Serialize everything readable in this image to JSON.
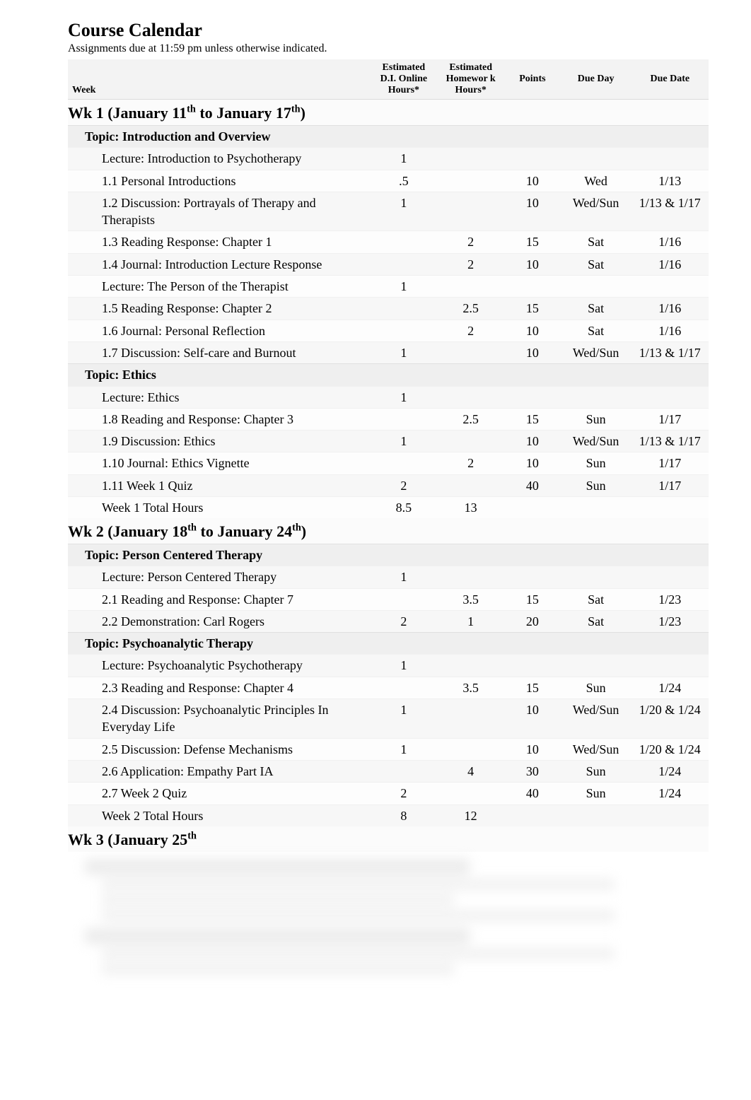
{
  "page": {
    "title": "Course Calendar",
    "subtitle": "Assignments due at 11:59 pm unless otherwise indicated."
  },
  "columns": {
    "week": "Week",
    "di": "Estimated D.I. Online Hours*",
    "hw": "Estimated Homewor k Hours*",
    "points": "Points",
    "dueday": "Due Day",
    "duedate": "Due Date"
  },
  "colors": {
    "header_bg": "#f3f3f3",
    "topic_bg": "#efefef",
    "row_alt_bg": "#f7f7f7",
    "row_bg": "#fdfdfd",
    "border": "#e0e0e0",
    "text": "#000000"
  },
  "weeks": [
    {
      "label_prefix": "Wk 1  (January 11",
      "label_sup1": "th",
      "label_mid": " to January 17",
      "label_sup2": "th",
      "label_suffix": ")",
      "sections": [
        {
          "topic": "Topic: Introduction and Overview",
          "items": [
            {
              "name": "Lecture: Introduction to Psychotherapy",
              "di": "1",
              "hw": "",
              "pts": "",
              "day": "",
              "date": ""
            },
            {
              "name": "1.1 Personal Introductions",
              "di": ".5",
              "hw": "",
              "pts": "10",
              "day": "Wed",
              "date": "1/13"
            },
            {
              "name": "1.2 Discussion: Portrayals of Therapy and Therapists",
              "di": "1",
              "hw": "",
              "pts": "10",
              "day": "Wed/Sun",
              "date": "1/13 & 1/17"
            },
            {
              "name": "1.3 Reading Response: Chapter 1",
              "di": "",
              "hw": "2",
              "pts": "15",
              "day": "Sat",
              "date": "1/16"
            },
            {
              "name": "1.4 Journal: Introduction Lecture Response",
              "di": "",
              "hw": "2",
              "pts": "10",
              "day": "Sat",
              "date": "1/16"
            },
            {
              "name": "Lecture: The Person of the Therapist",
              "di": "1",
              "hw": "",
              "pts": "",
              "day": "",
              "date": ""
            },
            {
              "name": "1.5 Reading Response: Chapter 2",
              "di": "",
              "hw": "2.5",
              "pts": "15",
              "day": "Sat",
              "date": "1/16"
            },
            {
              "name": "1.6 Journal: Personal Reflection",
              "di": "",
              "hw": "2",
              "pts": "10",
              "day": "Sat",
              "date": "1/16"
            },
            {
              "name": "1.7 Discussion: Self-care and Burnout",
              "di": "1",
              "hw": "",
              "pts": "10",
              "day": "Wed/Sun",
              "date": "1/13 & 1/17"
            }
          ]
        },
        {
          "topic": "Topic: Ethics",
          "items": [
            {
              "name": "Lecture: Ethics",
              "di": "1",
              "hw": "",
              "pts": "",
              "day": "",
              "date": ""
            },
            {
              "name": "1.8 Reading and Response: Chapter 3",
              "di": "",
              "hw": "2.5",
              "pts": "15",
              "day": "Sun",
              "date": "1/17"
            },
            {
              "name": "1.9 Discussion: Ethics",
              "di": "1",
              "hw": "",
              "pts": "10",
              "day": "Wed/Sun",
              "date": "1/13 & 1/17"
            },
            {
              "name": "1.10 Journal: Ethics Vignette",
              "di": "",
              "hw": "2",
              "pts": "10",
              "day": "Sun",
              "date": "1/17"
            },
            {
              "name": "1.11 Week 1 Quiz",
              "di": "2",
              "hw": "",
              "pts": "40",
              "day": "Sun",
              "date": "1/17"
            },
            {
              "name": "Week 1 Total Hours",
              "di": "8.5",
              "hw": "13",
              "pts": "",
              "day": "",
              "date": ""
            }
          ]
        }
      ]
    },
    {
      "label_prefix": "Wk 2  (January 18",
      "label_sup1": "th",
      "label_mid": " to January 24",
      "label_sup2": "th",
      "label_suffix": ")",
      "sections": [
        {
          "topic": "Topic: Person Centered Therapy",
          "items": [
            {
              "name": "Lecture: Person Centered Therapy",
              "di": "1",
              "hw": "",
              "pts": "",
              "day": "",
              "date": ""
            },
            {
              "name": "2.1 Reading and Response: Chapter 7",
              "di": "",
              "hw": "3.5",
              "pts": "15",
              "day": "Sat",
              "date": "1/23"
            },
            {
              "name": "2.2 Demonstration: Carl Rogers",
              "di": "2",
              "hw": "1",
              "pts": "20",
              "day": "Sat",
              "date": "1/23"
            }
          ]
        },
        {
          "topic": "Topic: Psychoanalytic Therapy",
          "items": [
            {
              "name": "Lecture: Psychoanalytic Psychotherapy",
              "di": "1",
              "hw": "",
              "pts": "",
              "day": "",
              "date": ""
            },
            {
              "name": "2.3 Reading and Response: Chapter 4",
              "di": "",
              "hw": "3.5",
              "pts": "15",
              "day": "Sun",
              "date": "1/24"
            },
            {
              "name": "2.4 Discussion: Psychoanalytic Principles In Everyday Life",
              "di": "1",
              "hw": "",
              "pts": "10",
              "day": "Wed/Sun",
              "date": "1/20 & 1/24"
            },
            {
              "name": "2.5 Discussion: Defense Mechanisms",
              "di": "1",
              "hw": "",
              "pts": "10",
              "day": "Wed/Sun",
              "date": "1/20 & 1/24"
            },
            {
              "name": "2.6 Application: Empathy Part IA",
              "di": "",
              "hw": "4",
              "pts": "30",
              "day": "Sun",
              "date": "1/24"
            },
            {
              "name": "2.7 Week 2 Quiz",
              "di": "2",
              "hw": "",
              "pts": "40",
              "day": "Sun",
              "date": "1/24"
            },
            {
              "name": "Week 2 Total Hours",
              "di": "8",
              "hw": "12",
              "pts": "",
              "day": "",
              "date": ""
            }
          ]
        }
      ]
    },
    {
      "label_prefix": "Wk 3  (January 25",
      "label_sup1": "th",
      "label_mid": "",
      "label_sup2": "",
      "label_suffix": "",
      "sections": []
    }
  ]
}
